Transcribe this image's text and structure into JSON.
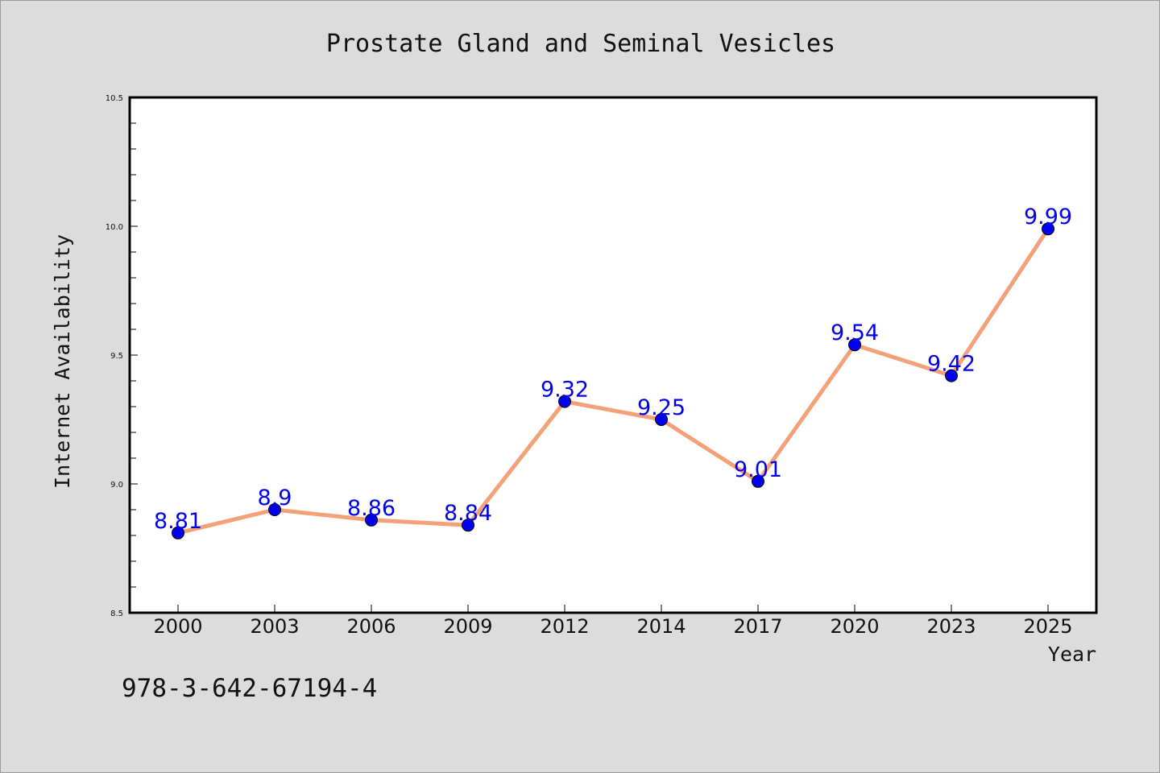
{
  "chart_data": {
    "type": "line",
    "title": "Prostate Gland and Seminal Vesicles",
    "xlabel": "Year",
    "ylabel": "Internet Availability",
    "categories": [
      "2000",
      "2003",
      "2006",
      "2009",
      "2012",
      "2014",
      "2017",
      "2020",
      "2023",
      "2025"
    ],
    "series": [
      {
        "values": [
          8.81,
          8.9,
          8.86,
          8.84,
          9.32,
          9.25,
          9.01,
          9.54,
          9.42,
          9.99
        ],
        "labels": [
          "8.81",
          "8.9",
          "8.86",
          "8.84",
          "9.32",
          "9.25",
          "9.01",
          "9.54",
          "9.42",
          "9.99"
        ]
      }
    ],
    "ylim": [
      8.5,
      10.5
    ],
    "yticks": [
      "8.5",
      "9.0",
      "9.5",
      "10.0",
      "10.5"
    ],
    "grid": false,
    "legend": "none"
  },
  "footer_text": "978-3-642-67194-4",
  "colors": {
    "line": "#f4a078",
    "marker": "#0000ee",
    "data_label": "#0000ee",
    "background": "#dcdcdc",
    "plot_background": "#ffffff",
    "axis": "#000000"
  }
}
